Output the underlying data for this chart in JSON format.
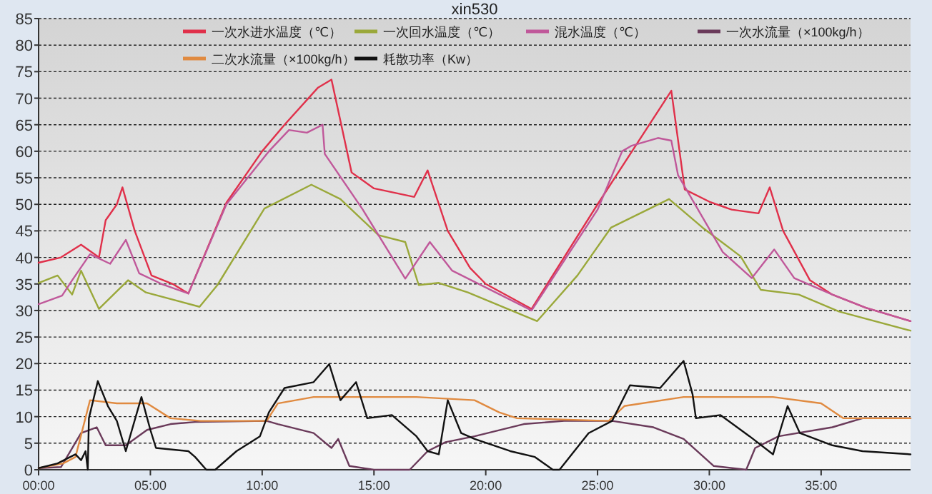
{
  "chart_data": {
    "type": "line",
    "title": "xin530",
    "legend": "top",
    "grid": "y",
    "marker": "none",
    "line_style": "solid",
    "xlim": [
      0,
      39
    ],
    "xticks": [
      {
        "value": 0,
        "label": "00:00"
      },
      {
        "value": 5,
        "label": "05:00"
      },
      {
        "value": 10,
        "label": "10:00"
      },
      {
        "value": 15,
        "label": "15:00"
      },
      {
        "value": 20,
        "label": "20:00"
      },
      {
        "value": 25,
        "label": "25:00"
      },
      {
        "value": 30,
        "label": "30:00"
      },
      {
        "value": 35,
        "label": "35:00"
      }
    ],
    "ylim": [
      0,
      85
    ],
    "yticks": [
      0,
      5,
      10,
      15,
      20,
      25,
      30,
      35,
      40,
      45,
      50,
      55,
      60,
      65,
      70,
      75,
      80,
      85
    ],
    "series": [
      {
        "name": "一次水进水温度（℃）",
        "color": "#e0304a",
        "x": [
          0,
          1,
          1.9,
          2.7,
          3,
          3.5,
          3.75,
          4.3,
          5.05,
          6,
          6.7,
          8.4,
          10,
          11,
          12.5,
          13.1,
          14,
          15,
          16.8,
          17.4,
          18.3,
          19.3,
          20,
          22.05,
          25,
          28.3,
          28.9,
          30,
          31,
          32.2,
          32.7,
          33.3,
          34.5,
          35.5,
          37,
          39
        ],
        "values": [
          39,
          40,
          42.4,
          40,
          47,
          50,
          53.2,
          45,
          36.6,
          35,
          33.2,
          50.3,
          60,
          65,
          72,
          73.5,
          56,
          53,
          51.4,
          56.4,
          45,
          38,
          35,
          30.3,
          50,
          71.4,
          52.8,
          50.5,
          49,
          48.3,
          53.2,
          45,
          35.7,
          33,
          30.5,
          28
        ]
      },
      {
        "name": "一次回水温度（℃）",
        "color": "#9aa83a",
        "x": [
          0,
          0.85,
          1.5,
          1.9,
          2.7,
          4,
          4.8,
          7.2,
          8,
          10.1,
          12.2,
          13.5,
          15.2,
          16.4,
          17,
          17.9,
          19.2,
          22.3,
          24.1,
          25.6,
          28.2,
          29.7,
          31.4,
          32.3,
          34,
          35.8,
          39
        ],
        "values": [
          35.2,
          36.6,
          33,
          37.5,
          30.3,
          35.7,
          33.4,
          30.7,
          34.8,
          49.2,
          53.7,
          51,
          44.2,
          42.9,
          34.8,
          35.2,
          33.4,
          28,
          36.6,
          45.6,
          51,
          45.6,
          40.2,
          33.9,
          33,
          29.8,
          26.2
        ]
      },
      {
        "name": "混水温度（℃）",
        "color": "#c0589a",
        "x": [
          0,
          1.05,
          1.5,
          2.3,
          3.2,
          3.9,
          4.5,
          5.5,
          6.7,
          8.4,
          10.3,
          11.2,
          12,
          12.7,
          12.8,
          14.5,
          16.4,
          17.5,
          18.5,
          22.05,
          25,
          26.1,
          26.5,
          27.7,
          28.3,
          28.6,
          30.6,
          31.9,
          32.9,
          33.8,
          35.5,
          37,
          39
        ],
        "values": [
          31.2,
          32.8,
          35.7,
          40.6,
          38.8,
          43.3,
          37,
          35,
          33.2,
          50,
          60,
          64,
          63.5,
          65,
          59.5,
          49,
          36,
          42.9,
          37.5,
          30,
          49,
          60,
          61,
          62.5,
          62,
          55.5,
          41,
          36.1,
          41.5,
          36.1,
          33,
          30.5,
          28
        ]
      },
      {
        "name": "一次水流量（×100kg/h）",
        "color": "#6a3a5a",
        "x": [
          0,
          1,
          1.9,
          2.6,
          3,
          3.9,
          4.85,
          5.9,
          7,
          10.2,
          10.7,
          12.3,
          13.1,
          13.4,
          13.9,
          15,
          16.6,
          17.4,
          18.2,
          19.5,
          21.7,
          23.5,
          25.65,
          27.5,
          28.85,
          30.2,
          31.65,
          32.05,
          33.1,
          35.5,
          36.85,
          39
        ],
        "values": [
          0.3,
          0.5,
          6.9,
          8,
          4.6,
          4.6,
          7.5,
          8.6,
          9,
          9.2,
          8.6,
          6.9,
          4.1,
          5.8,
          0.7,
          0,
          0,
          3.5,
          5.2,
          6.3,
          8.6,
          9.2,
          9.2,
          8,
          5.8,
          0.7,
          0,
          4.1,
          6.3,
          8,
          9.7,
          9.7
        ]
      },
      {
        "name": "二次水流量（×100kg/h）",
        "color": "#e08a40",
        "x": [
          0,
          1.1,
          1.65,
          2.3,
          3.5,
          4.85,
          5.9,
          7.25,
          10.2,
          10.7,
          12.3,
          16.9,
          19.5,
          20.6,
          21.4,
          25.5,
          26.2,
          28.85,
          32.85,
          35,
          36,
          39
        ],
        "values": [
          0.3,
          1.2,
          2.4,
          13.1,
          12.5,
          12.5,
          9.7,
          9.2,
          9.2,
          12.5,
          13.7,
          13.7,
          13.1,
          10.8,
          9.7,
          9.2,
          12,
          13.7,
          13.7,
          12.5,
          9.7,
          9.7
        ]
      },
      {
        "name": "耗散功率（Kw）",
        "color": "#111111",
        "x": [
          0,
          0.85,
          1.65,
          1.9,
          2.1,
          2.2,
          2.25,
          2.65,
          3.1,
          3.5,
          3.9,
          4.6,
          5,
          5.25,
          6.7,
          7,
          7.5,
          7.9,
          8.85,
          9.9,
          10.3,
          11,
          12.3,
          13,
          13.5,
          14.2,
          14.7,
          15.8,
          16.9,
          17.4,
          17.9,
          18.3,
          18.9,
          19.5,
          21.1,
          22.2,
          23,
          23.3,
          24.6,
          25.65,
          26.45,
          27.8,
          28.85,
          29.25,
          29.4,
          30.5,
          31.8,
          32.85,
          33.5,
          34.05,
          35.5,
          36.85,
          39
        ],
        "values": [
          0.3,
          1.2,
          2.9,
          1.8,
          3.5,
          0,
          9.7,
          16.7,
          12,
          9.2,
          3.5,
          13.7,
          7.5,
          4.1,
          3.5,
          2.4,
          0,
          0,
          3.5,
          6.3,
          10.8,
          15.4,
          16.5,
          19.9,
          13.1,
          16.5,
          9.7,
          10.3,
          6.3,
          3.5,
          2.9,
          13.1,
          6.9,
          5.8,
          3.5,
          2.4,
          0,
          0,
          6.9,
          9.2,
          15.9,
          15.4,
          20.5,
          14.2,
          9.7,
          10.3,
          6.3,
          2.9,
          12,
          6.9,
          4.6,
          3.5,
          2.9
        ]
      }
    ]
  }
}
